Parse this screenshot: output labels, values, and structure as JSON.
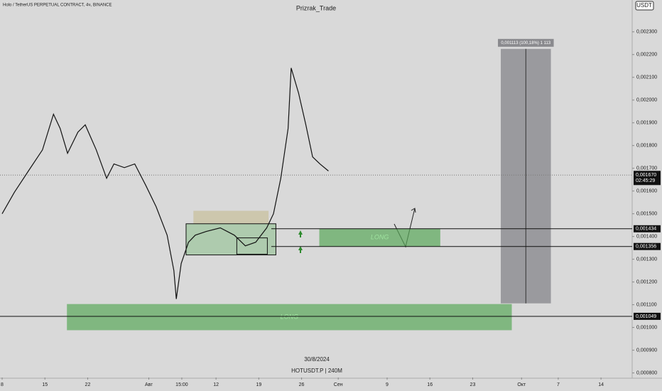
{
  "chart_data": {
    "type": "line",
    "title": "Holo / TetherUS PERPETUAL CONTRACT, 4ч, BINANCE",
    "author": "Prizrak_Trade",
    "currency": "USDT",
    "date": "30/8/2024",
    "symbol": "HOTUSDT.P | 240M",
    "color": "#111111",
    "x": [
      0,
      2,
      4.3,
      6.6,
      8.4,
      9.5,
      10.7,
      12.4,
      13.6,
      15.4,
      17.1,
      18.3,
      20,
      21.7,
      23.5,
      25.2,
      27,
      28.1,
      28.5,
      29.3,
      30.5,
      31.6,
      33.4,
      35.7,
      38,
      39.8,
      41.5,
      43.3,
      44.4,
      45.6,
      46.8,
      47.3,
      48.5,
      49.7,
      50.8,
      52,
      53.4
    ],
    "values": [
      0.0015,
      0.001594,
      0.001688,
      0.001781,
      0.001938,
      0.001875,
      0.001766,
      0.001859,
      0.001891,
      0.001781,
      0.001656,
      0.001719,
      0.001703,
      0.001719,
      0.001625,
      0.001531,
      0.001406,
      0.00125,
      0.001125,
      0.001281,
      0.001375,
      0.001406,
      0.001422,
      0.001438,
      0.001406,
      0.001359,
      0.001375,
      0.001438,
      0.0015,
      0.001656,
      0.001875,
      0.002141,
      0.002031,
      0.001891,
      0.00175,
      0.001719,
      0.001688
    ],
    "xlim": [
      -0.35,
      103.1
    ],
    "ylim": [
      0.00078,
      0.00244
    ],
    "xticks": [
      {
        "value": 0,
        "label": "8"
      },
      {
        "value": 7,
        "label": "15"
      },
      {
        "value": 14,
        "label": "22"
      },
      {
        "value": 24,
        "label": "Авг"
      },
      {
        "value": 29.4,
        "label": "15:00"
      },
      {
        "value": 35,
        "label": "12"
      },
      {
        "value": 42,
        "label": "19"
      },
      {
        "value": 49,
        "label": "26"
      },
      {
        "value": 55,
        "label": "Сен"
      },
      {
        "value": 63,
        "label": "9"
      },
      {
        "value": 70,
        "label": "16"
      },
      {
        "value": 77,
        "label": "23"
      },
      {
        "value": 85,
        "label": "Окт"
      },
      {
        "value": 91,
        "label": "7"
      },
      {
        "value": 98,
        "label": "14"
      }
    ],
    "yticks": [
      {
        "value": 0.0023,
        "label": "0,002300"
      },
      {
        "value": 0.0022,
        "label": "0,002200"
      },
      {
        "value": 0.0021,
        "label": "0,002100"
      },
      {
        "value": 0.002,
        "label": "0,002000"
      },
      {
        "value": 0.0019,
        "label": "0,001900"
      },
      {
        "value": 0.0018,
        "label": "0,001800"
      },
      {
        "value": 0.0017,
        "label": "0,001700"
      },
      {
        "value": 0.0016,
        "label": "0,001600"
      },
      {
        "value": 0.0015,
        "label": "0,001500"
      },
      {
        "value": 0.0014,
        "label": "0,001400"
      },
      {
        "value": 0.0013,
        "label": "0,001300"
      },
      {
        "value": 0.0012,
        "label": "0,001200"
      },
      {
        "value": 0.0011,
        "label": "0,001100"
      },
      {
        "value": 0.001,
        "label": "0,001000"
      },
      {
        "value": 0.0009,
        "label": "0,000900"
      },
      {
        "value": 0.0008,
        "label": "0,000800"
      }
    ],
    "zones": [
      {
        "label": "LONG",
        "x": [
          51.9,
          71.7
        ],
        "y": [
          0.001434,
          0.001356
        ]
      },
      {
        "label": "LONG",
        "x": [
          10.6,
          83.4
        ],
        "y": [
          0.001103,
          0.000988
        ]
      }
    ],
    "boxes": [
      {
        "x": [
          31.3,
          43.6
        ],
        "y": [
          0.001513,
          0.001456
        ]
      },
      {
        "x": [
          30.1,
          44.8
        ],
        "y": [
          0.001456,
          0.001319
        ]
      },
      {
        "x": [
          38.4,
          43.4
        ],
        "y": [
          0.001394,
          0.001322
        ]
      }
    ],
    "levels": [
      {
        "value": 0.001434,
        "label": "0,001434"
      },
      {
        "value": 0.001356,
        "label": "0,001356"
      },
      {
        "value": 0.001049,
        "label": "0,001049"
      }
    ],
    "current": {
      "value": 0.00167,
      "label": "0,001670",
      "timer": "02:45:29"
    },
    "measure": {
      "x": [
        81.6,
        89.8
      ],
      "y": [
        0.002225,
        0.001106
      ],
      "label": "0,001113 (100,18%) 1 113"
    }
  }
}
